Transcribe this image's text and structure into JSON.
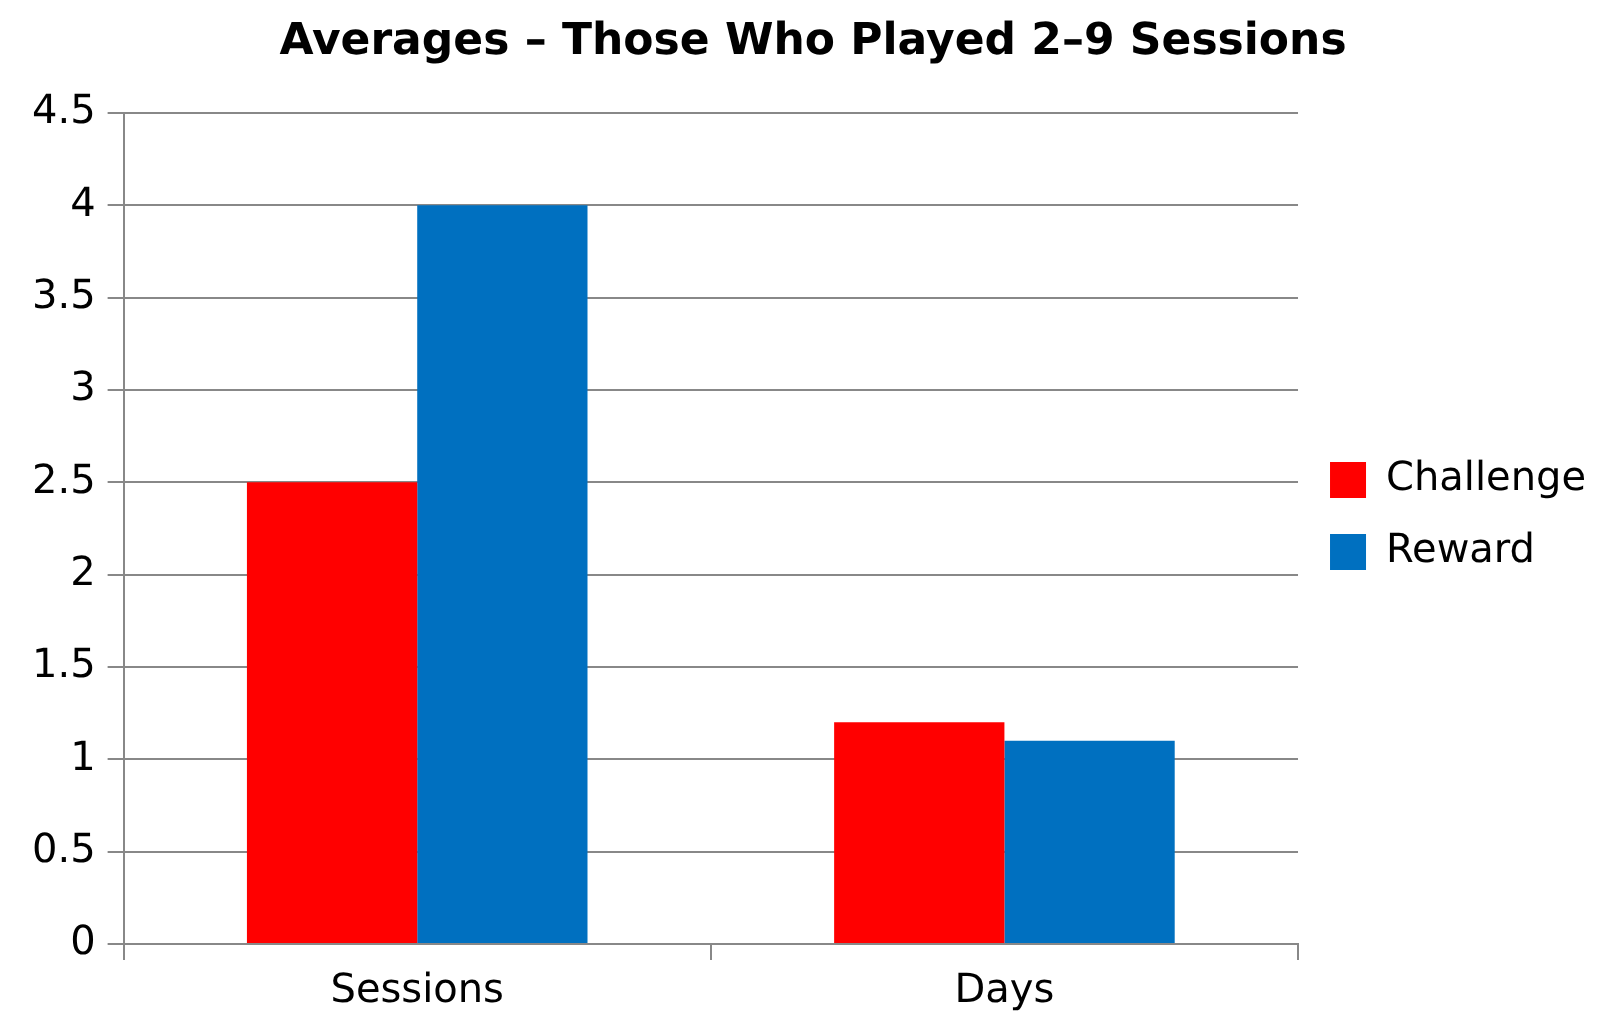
{
  "chart_data": {
    "type": "bar",
    "title": "Averages – Those Who Played 2–9 Sessions",
    "categories": [
      "Sessions",
      "Days"
    ],
    "series": [
      {
        "name": "Challenge",
        "color": "#ff0000",
        "values": [
          2.5,
          1.2
        ]
      },
      {
        "name": "Reward",
        "color": "#0070c0",
        "values": [
          4,
          1.1
        ]
      }
    ],
    "ylim": [
      0,
      4.5
    ],
    "yticks": [
      0,
      0.5,
      1,
      1.5,
      2,
      2.5,
      3,
      3.5,
      4,
      4.5
    ],
    "grid": "y",
    "legend": "right"
  }
}
